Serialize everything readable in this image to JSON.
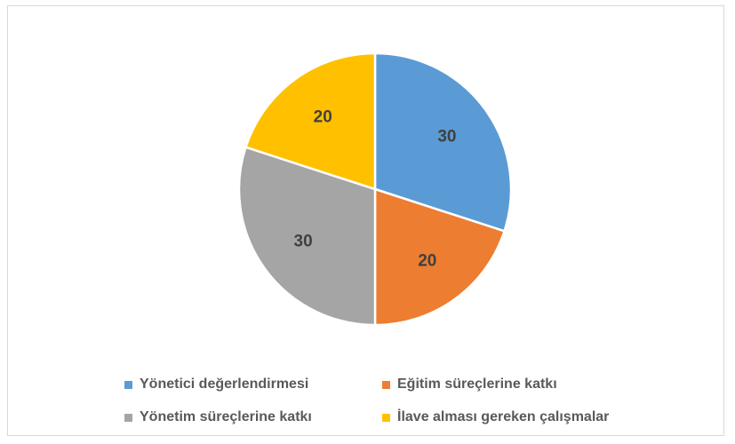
{
  "chart_data": {
    "type": "pie",
    "title": "",
    "categories": [
      "Yönetici değerlendirmesi",
      "Eğitim süreçlerine katkı",
      "Yönetim süreçlerine katkı",
      "İlave alması gereken çalışmalar"
    ],
    "values": [
      30,
      20,
      30,
      20
    ],
    "colors": [
      "#5b9bd5",
      "#ed7d31",
      "#a5a5a5",
      "#ffc000"
    ],
    "data_labels": [
      "30",
      "20",
      "30",
      "20"
    ],
    "legend_position": "bottom"
  }
}
